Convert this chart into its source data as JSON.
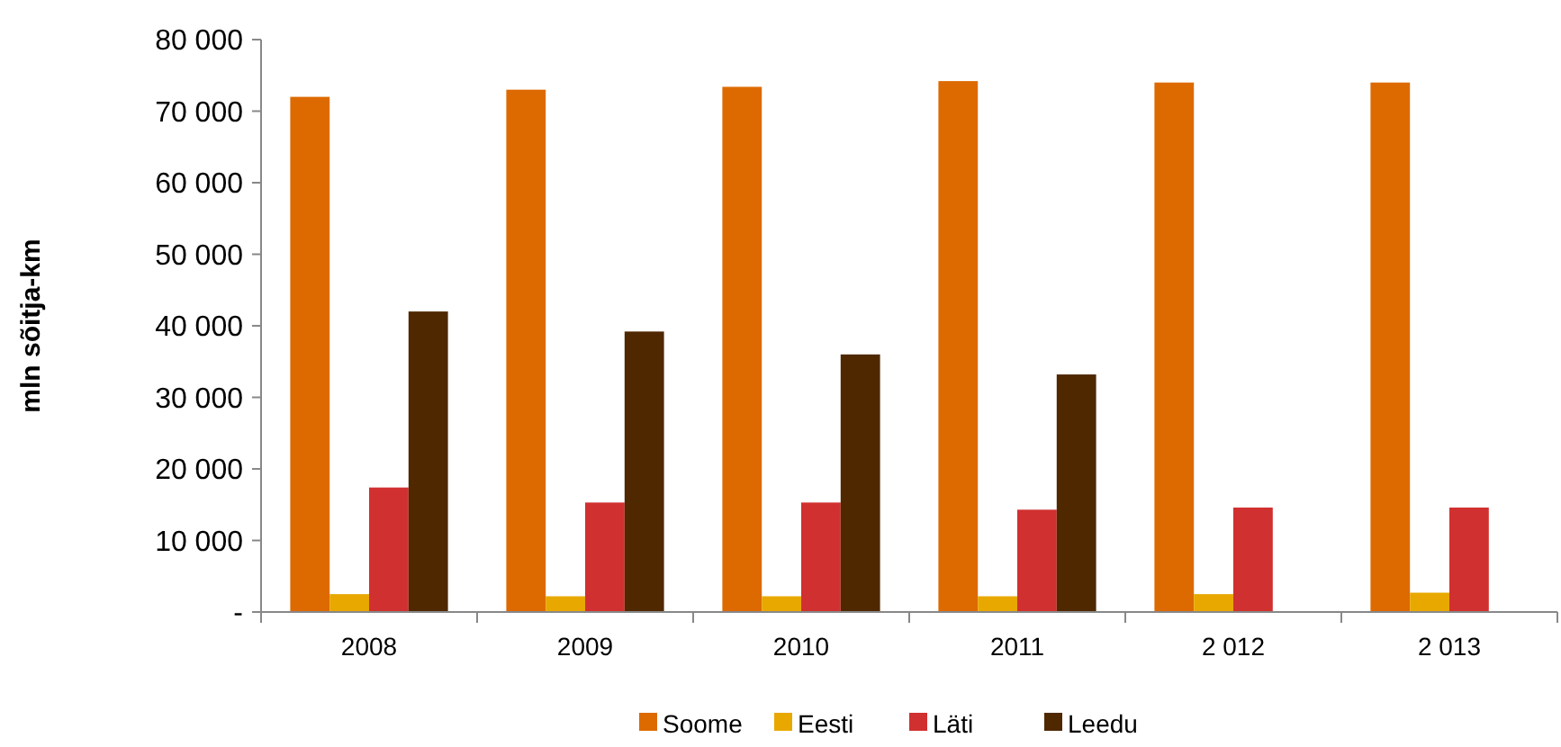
{
  "chart_data": {
    "type": "bar",
    "ylabel": "mln sõitja-km",
    "categories": [
      "2008",
      "2009",
      "2010",
      "2011",
      "2 012",
      "2 013"
    ],
    "series": [
      {
        "name": "Soome",
        "color": "#dd6a00",
        "values": [
          72000,
          73000,
          73400,
          74200,
          74000,
          74000
        ]
      },
      {
        "name": "Eesti",
        "color": "#e8a800",
        "values": [
          2500,
          2200,
          2200,
          2200,
          2500,
          2700
        ]
      },
      {
        "name": "Läti",
        "color": "#d13030",
        "values": [
          17400,
          15300,
          15300,
          14300,
          14600,
          14600
        ]
      },
      {
        "name": "Leedu",
        "color": "#4f2800",
        "values": [
          42000,
          39200,
          36000,
          33200,
          null,
          null
        ]
      }
    ],
    "ylim": [
      0,
      80000
    ],
    "yticks": [
      {
        "value": 0,
        "label": "-"
      },
      {
        "value": 10000,
        "label": "10 000"
      },
      {
        "value": 20000,
        "label": "20 000"
      },
      {
        "value": 30000,
        "label": "30 000"
      },
      {
        "value": 40000,
        "label": "40 000"
      },
      {
        "value": 50000,
        "label": "50 000"
      },
      {
        "value": 60000,
        "label": "60 000"
      },
      {
        "value": 70000,
        "label": "70 000"
      },
      {
        "value": 80000,
        "label": "80 000"
      }
    ],
    "grid": false,
    "legend": "bottom"
  }
}
